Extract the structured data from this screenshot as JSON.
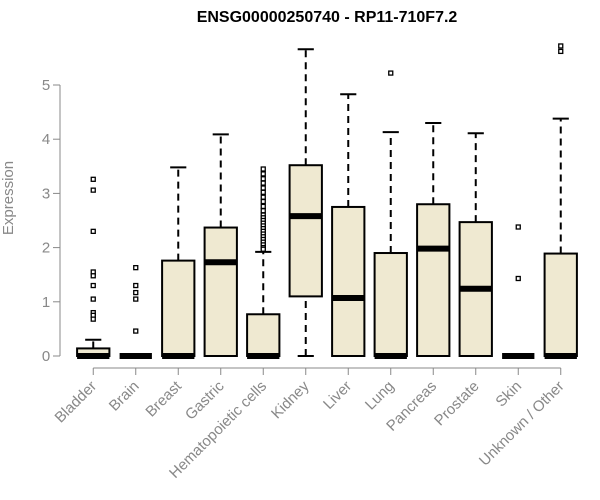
{
  "chart_data": {
    "type": "box",
    "title": "ENSG00000250740 - RP11-710F7.2",
    "xlabel": "",
    "ylabel": "Expression",
    "ylim": [
      0,
      5.7
    ],
    "yticks": [
      0,
      1,
      2,
      3,
      4,
      5
    ],
    "grid": false,
    "box_fill": "#efe9d1",
    "box_stroke": "#000000",
    "axis_color": "#888888",
    "categories": [
      "Bladder",
      "Brain",
      "Breast",
      "Gastric",
      "Hematopoietic cells",
      "Kidney",
      "Liver",
      "Lung",
      "Pancreas",
      "Prostate",
      "Skin",
      "Unknown / Other"
    ],
    "boxes": [
      {
        "min": 0,
        "q1": 0,
        "median": 0,
        "q3": 0.14,
        "max": 0.3,
        "outliers": [
          3.26,
          3.06,
          2.3,
          1.55,
          1.48,
          1.3,
          1.05,
          0.8,
          0.75,
          0.68
        ]
      },
      {
        "min": 0,
        "q1": 0,
        "median": 0,
        "q3": 0,
        "max": 0,
        "outliers": [
          1.63,
          1.3,
          1.17,
          1.05,
          0.46
        ]
      },
      {
        "min": 0,
        "q1": 0,
        "median": 0,
        "q3": 1.76,
        "max": 3.48,
        "outliers": []
      },
      {
        "min": 0,
        "q1": 0,
        "median": 1.73,
        "q3": 2.37,
        "max": 4.09,
        "outliers": []
      },
      {
        "min": 0,
        "q1": 0,
        "median": 0,
        "q3": 0.77,
        "max": 1.92,
        "outliers": [
          3.45,
          3.36,
          3.27,
          3.19,
          3.1,
          3.02,
          2.93,
          2.85,
          2.76,
          2.68,
          2.6,
          2.55,
          2.5,
          2.45,
          2.4,
          2.35,
          2.3,
          2.25,
          2.2,
          2.15,
          2.1,
          2.05,
          2.0,
          1.97
        ]
      },
      {
        "min": 0,
        "q1": 1.1,
        "median": 2.58,
        "q3": 3.52,
        "max": 5.66,
        "outliers": []
      },
      {
        "min": 0,
        "q1": 0,
        "median": 1.07,
        "q3": 2.75,
        "max": 4.83,
        "outliers": []
      },
      {
        "min": 0,
        "q1": 0,
        "median": 0,
        "q3": 1.9,
        "max": 4.13,
        "outliers": [
          5.22
        ]
      },
      {
        "min": 0,
        "q1": 0,
        "median": 1.98,
        "q3": 2.8,
        "max": 4.3,
        "outliers": []
      },
      {
        "min": 0,
        "q1": 0,
        "median": 1.24,
        "q3": 2.47,
        "max": 4.11,
        "outliers": []
      },
      {
        "min": 0,
        "q1": 0,
        "median": 0,
        "q3": 0,
        "max": 0,
        "outliers": [
          2.38,
          1.43
        ]
      },
      {
        "min": 0,
        "q1": 0,
        "median": 0,
        "q3": 1.89,
        "max": 4.38,
        "outliers": [
          5.72,
          5.62
        ]
      }
    ]
  }
}
